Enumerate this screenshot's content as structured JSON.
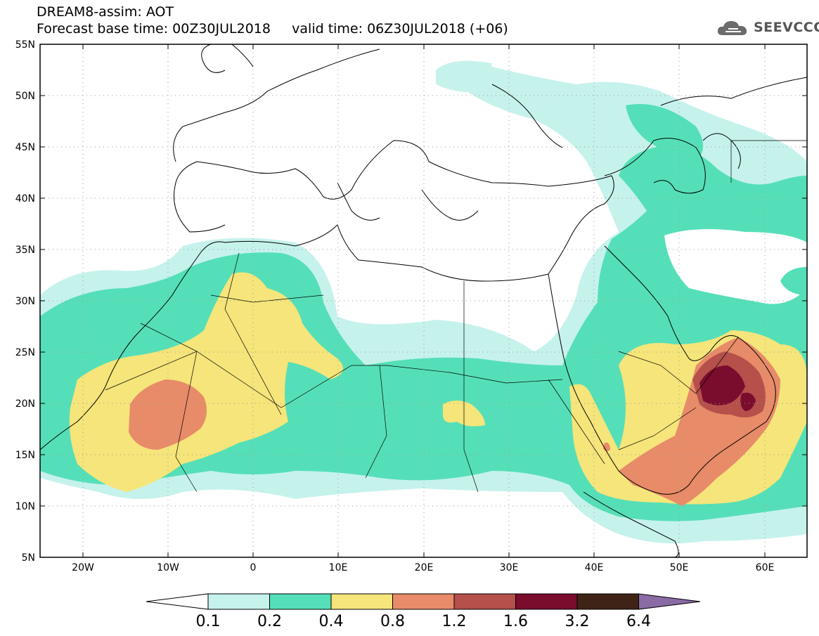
{
  "header": {
    "title": "DREAM8-assim: AOT",
    "subline": "Forecast base time: 00Z30JUL2018     valid time: 06Z30JUL2018 (+06)"
  },
  "logo": {
    "text": "SEEVCCC",
    "icon": "cloud-icon"
  },
  "map": {
    "lat_labels": [
      "55N",
      "50N",
      "45N",
      "40N",
      "35N",
      "30N",
      "25N",
      "20N",
      "15N",
      "10N",
      "5N"
    ],
    "lon_labels": [
      "20W",
      "10W",
      "0",
      "10E",
      "20E",
      "30E",
      "40E",
      "50E",
      "60E"
    ],
    "lat_range": [
      5,
      55
    ],
    "lon_range": [
      -25,
      65
    ],
    "grid": "dotted"
  },
  "colorbar": {
    "levels": [
      "0.1",
      "0.2",
      "0.4",
      "0.8",
      "1.2",
      "1.6",
      "3.2",
      "6.4"
    ],
    "colors": [
      "#ffffff",
      "#c6f2ec",
      "#55dfb8",
      "#f5e57a",
      "#e88b68",
      "#b5504b",
      "#7a0c2e",
      "#3e2316",
      "#8a6ba5"
    ]
  }
}
